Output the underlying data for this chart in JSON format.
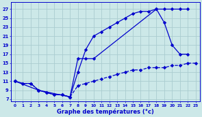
{
  "xlabel": "Graphe des températures (°c)",
  "bg_color": "#cce8e8",
  "grid_color": "#aaccd0",
  "line_color": "#0000cc",
  "xlim": [
    -0.5,
    23.5
  ],
  "ylim": [
    6.5,
    28.5
  ],
  "xticks": [
    0,
    1,
    2,
    3,
    4,
    5,
    6,
    7,
    8,
    9,
    10,
    11,
    12,
    13,
    14,
    15,
    16,
    17,
    18,
    19,
    20,
    21,
    22,
    23
  ],
  "yticks": [
    7,
    9,
    11,
    13,
    15,
    17,
    19,
    21,
    23,
    25,
    27
  ],
  "line1_x": [
    0,
    1,
    2,
    3,
    4,
    5,
    6,
    7,
    8,
    9,
    10,
    11,
    12,
    13,
    14,
    15,
    16,
    17,
    18,
    19,
    20,
    21,
    22
  ],
  "line1_y": [
    11,
    10.5,
    10.5,
    9,
    8.5,
    8,
    8,
    7.5,
    13,
    18,
    21,
    22,
    23,
    24,
    25,
    26,
    26.5,
    26.5,
    27,
    27,
    27,
    27,
    27
  ],
  "line2_x": [
    0,
    3,
    7,
    8,
    9,
    10,
    18,
    19,
    20,
    21,
    22
  ],
  "line2_y": [
    11,
    9,
    7.5,
    16,
    16,
    16,
    27,
    24,
    19,
    17,
    17
  ],
  "line3_x": [
    0,
    1,
    2,
    3,
    4,
    5,
    6,
    7,
    8,
    9,
    10,
    11,
    12,
    13,
    14,
    15,
    16,
    17,
    18,
    19,
    20,
    21,
    22,
    23
  ],
  "line3_y": [
    11,
    10.5,
    10.5,
    9,
    8.5,
    8,
    8,
    7.5,
    10,
    10.5,
    11,
    11.5,
    12,
    12.5,
    13,
    13.5,
    13.5,
    14,
    14,
    14,
    14.5,
    14.5,
    15,
    15
  ]
}
